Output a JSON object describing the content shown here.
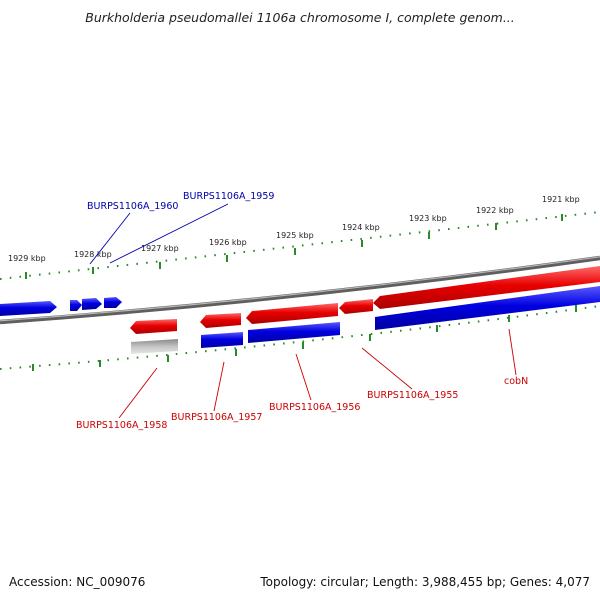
{
  "title": "Burkholderia pseudomallei 1106a chromosome I, complete genom...",
  "footer": {
    "accession": "Accession: NC_009076",
    "summary": "Topology: circular; Length: 3,988,455 bp; Genes: 4,077"
  },
  "kbp_labels": [
    "1929 kbp",
    "1928 kbp",
    "1927 kbp",
    "1926 kbp",
    "1925 kbp",
    "1924 kbp",
    "1923 kbp",
    "1922 kbp",
    "1921 kbp"
  ],
  "gene_labels": {
    "burps1106a_1960": "BURPS1106A_1960",
    "burps1106a_1959": "BURPS1106A_1959",
    "burps1106a_1958": "BURPS1106A_1958",
    "burps1106a_1957": "BURPS1106A_1957",
    "burps1106a_1956": "BURPS1106A_1956",
    "burps1106a_1955": "BURPS1106A_1955",
    "cobn": "cobN"
  },
  "colors": {
    "forward_strand": "#dd0000",
    "reverse_strand": "#0000dd",
    "pseudo": "#bbbbbb",
    "backbone": "#777777",
    "ticks": "#2a8a2a",
    "label_forward": "#cc0000",
    "label_reverse": "#0000aa"
  }
}
